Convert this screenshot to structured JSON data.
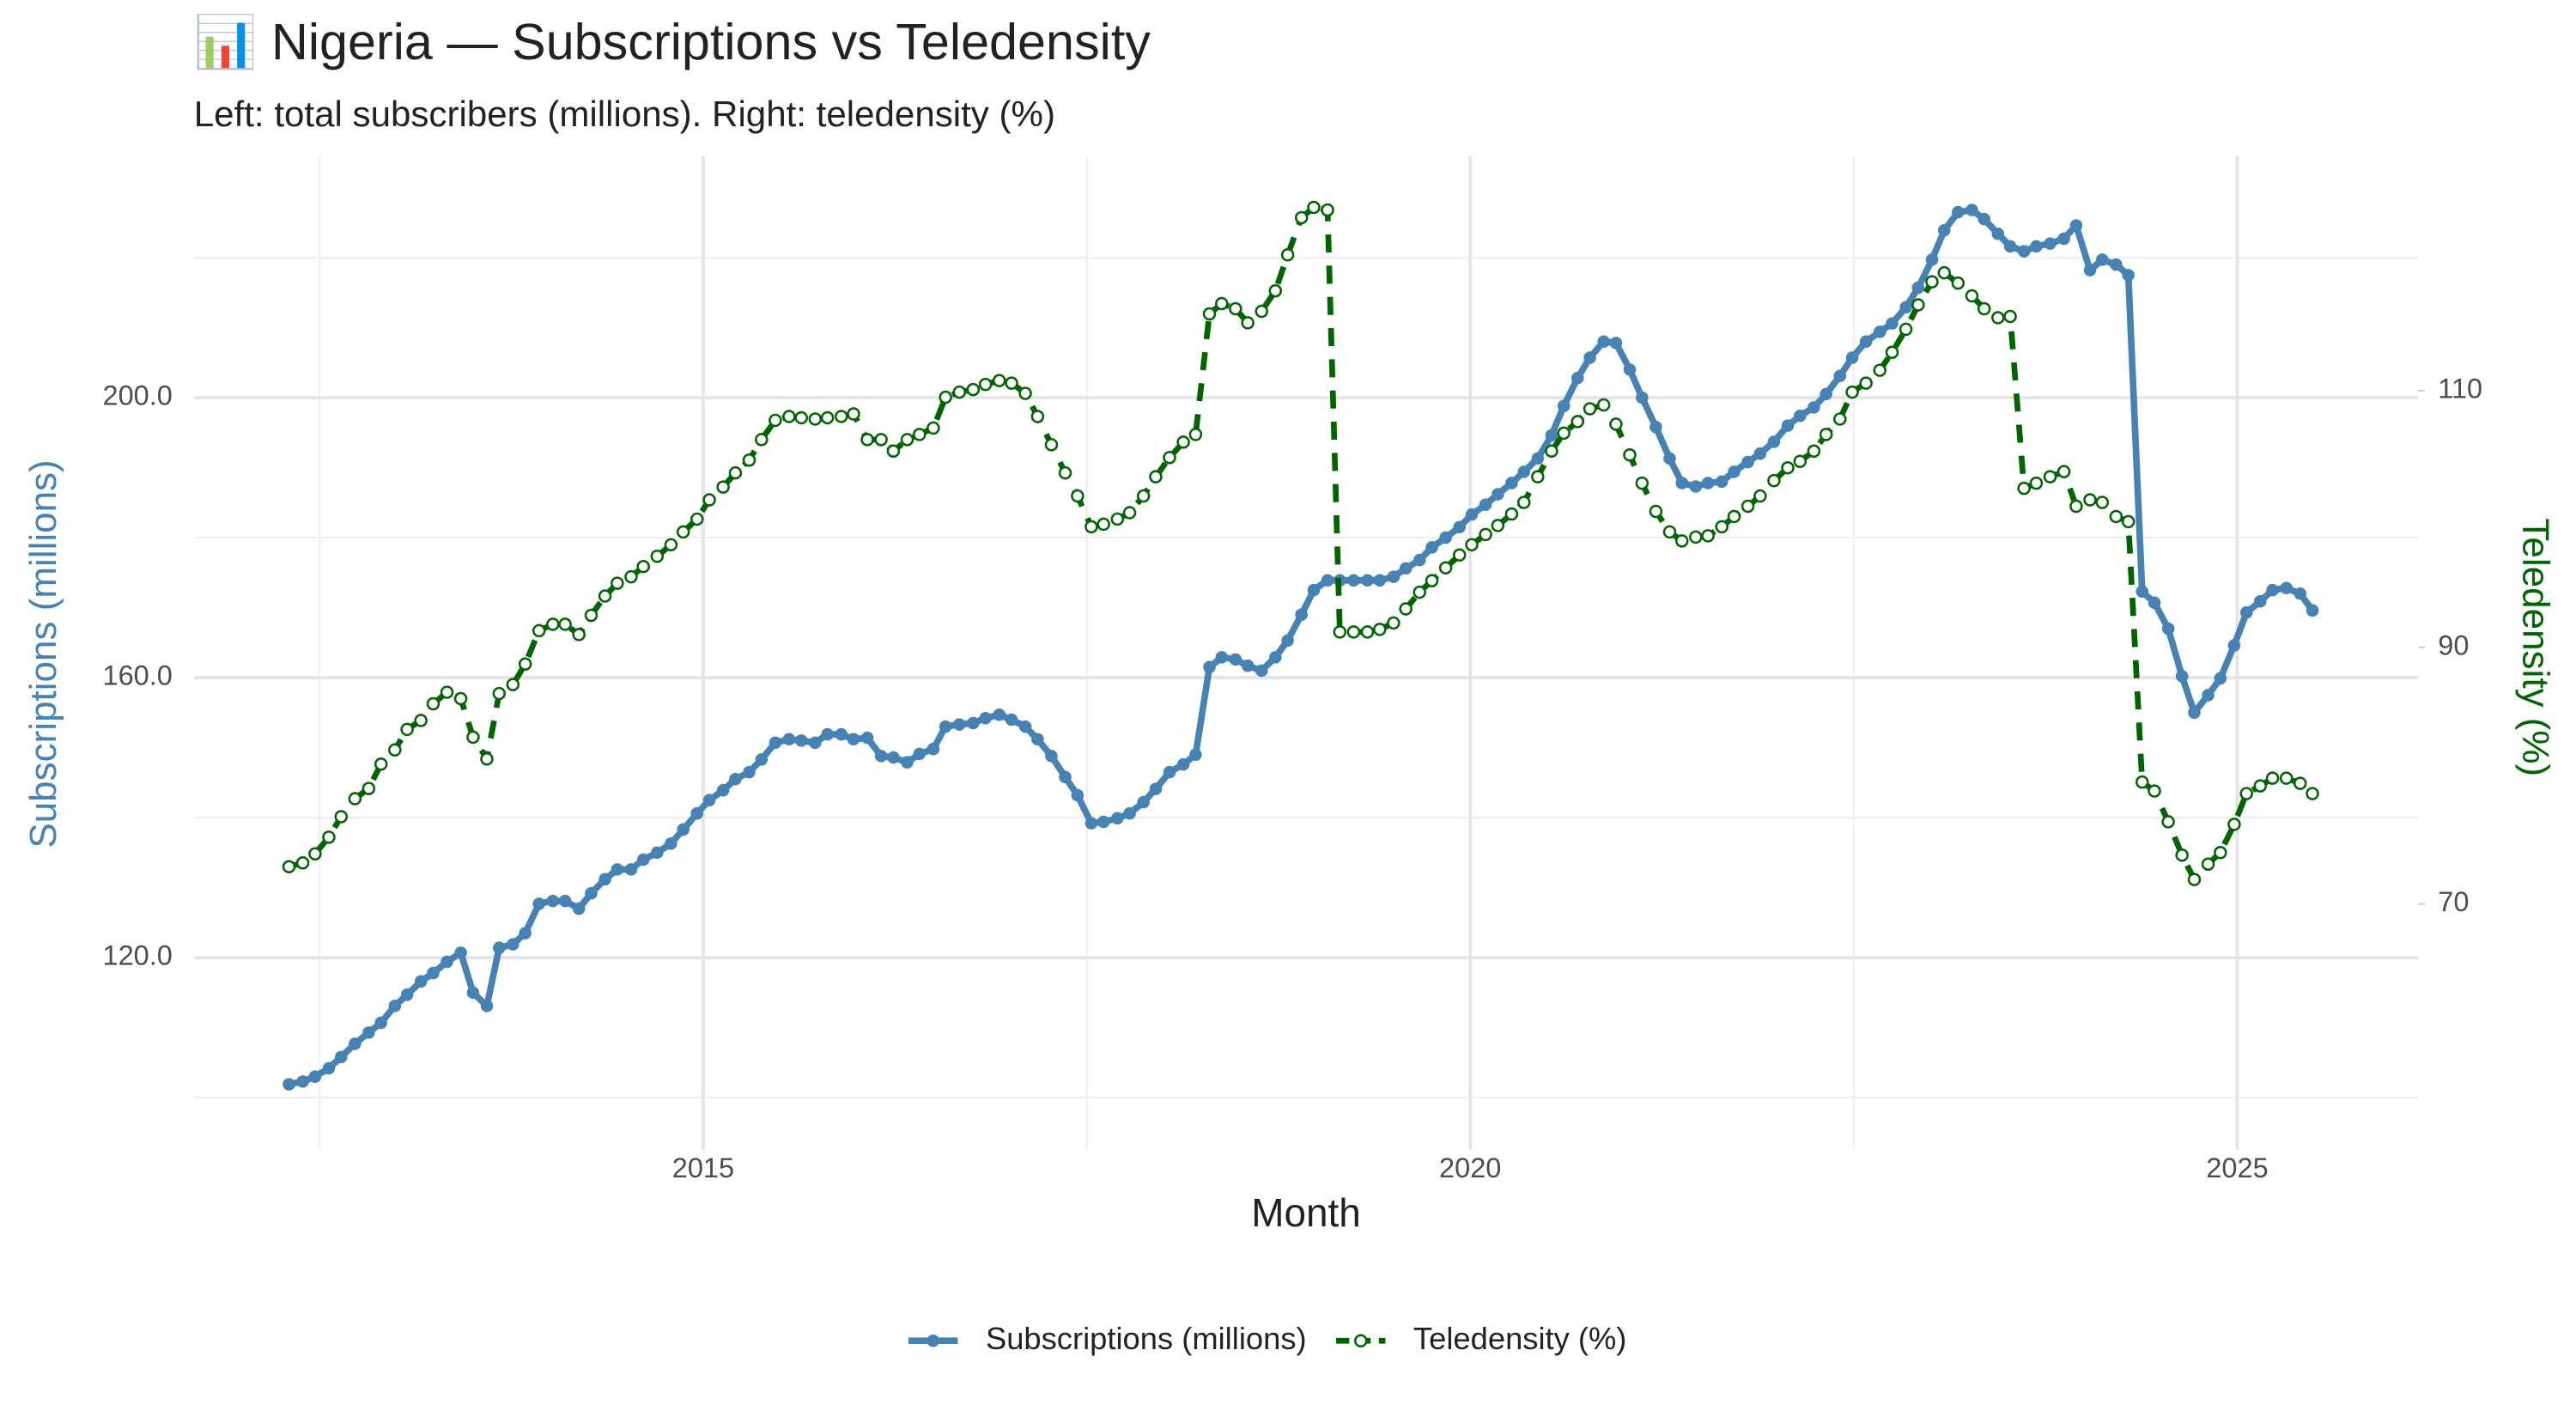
{
  "chart_data": {
    "type": "line",
    "title": "📊 Nigeria — Subscriptions vs Teledensity",
    "subtitle": "Left: total subscribers (millions). Right: teledensity (%)",
    "x_label": "Month",
    "y_label": "Subscriptions (millions)",
    "y2_label": "Teledensity (%)",
    "xlim": [
      2011.68,
      2026.18
    ],
    "xticks": [
      2015,
      2020,
      2025
    ],
    "xminorticks": [
      2012.5,
      2017.5,
      2022.5
    ],
    "ylim": [
      92.5,
      234.5
    ],
    "yticks": [
      {
        "value": 120,
        "label": "120.0"
      },
      {
        "value": 160,
        "label": "160.0"
      },
      {
        "value": 200,
        "label": "200.0"
      }
    ],
    "yminorticks": [
      100,
      140,
      180,
      220
    ],
    "y2lim": [
      50.8,
      128.3
    ],
    "y2ticks": [
      70,
      90,
      110
    ],
    "grid": true,
    "legend": "bottom",
    "x": [
      2012.3,
      2012.39,
      2012.47,
      2012.56,
      2012.64,
      2012.73,
      2012.82,
      2012.9,
      2012.99,
      2013.07,
      2013.16,
      2013.24,
      2013.33,
      2013.42,
      2013.5,
      2013.59,
      2013.67,
      2013.76,
      2013.84,
      2013.93,
      2014.02,
      2014.1,
      2014.19,
      2014.27,
      2014.36,
      2014.44,
      2014.53,
      2014.61,
      2014.7,
      2014.79,
      2014.87,
      2014.96,
      2015.04,
      2015.13,
      2015.21,
      2015.3,
      2015.38,
      2015.47,
      2015.56,
      2015.64,
      2015.73,
      2015.81,
      2015.9,
      2015.98,
      2016.07,
      2016.16,
      2016.24,
      2016.33,
      2016.41,
      2016.5,
      2016.58,
      2016.67,
      2016.76,
      2016.84,
      2016.93,
      2017.01,
      2017.1,
      2017.18,
      2017.27,
      2017.36,
      2017.44,
      2017.53,
      2017.61,
      2017.7,
      2017.78,
      2017.87,
      2017.95,
      2018.04,
      2018.13,
      2018.21,
      2018.3,
      2018.38,
      2018.47,
      2018.55,
      2018.64,
      2018.73,
      2018.81,
      2018.9,
      2018.98,
      2019.07,
      2019.15,
      2019.24,
      2019.33,
      2019.41,
      2019.5,
      2019.58,
      2019.67,
      2019.75,
      2019.84,
      2019.93,
      2020.01,
      2020.1,
      2020.18,
      2020.27,
      2020.35,
      2020.44,
      2020.53,
      2020.61,
      2020.7,
      2020.78,
      2020.87,
      2020.95,
      2021.04,
      2021.12,
      2021.21,
      2021.3,
      2021.38,
      2021.47,
      2021.55,
      2021.64,
      2021.72,
      2021.81,
      2021.89,
      2021.98,
      2022.07,
      2022.15,
      2022.24,
      2022.32,
      2022.41,
      2022.49,
      2022.58,
      2022.67,
      2022.75,
      2022.84,
      2022.92,
      2023.01,
      2023.09,
      2023.18,
      2023.27,
      2023.35,
      2023.44,
      2023.52,
      2023.61,
      2023.69,
      2023.78,
      2023.87,
      2023.95,
      2024.04,
      2024.12,
      2024.21,
      2024.29,
      2024.38,
      2024.46,
      2024.55,
      2024.64,
      2024.72,
      2024.81,
      2024.89,
      2024.98,
      2025.06,
      2025.15,
      2025.23,
      2025.32,
      2025.41,
      2025.49
    ],
    "series": [
      {
        "name": "Subscriptions (millions)",
        "color": "#4682b4",
        "line_style": "solid",
        "marker_fill": "filled",
        "values": [
          101.9,
          102.3,
          103.0,
          104.2,
          105.8,
          107.7,
          109.3,
          110.7,
          113.1,
          114.7,
          116.6,
          117.8,
          119.4,
          120.7,
          115.0,
          113.1,
          121.4,
          121.9,
          123.5,
          127.7,
          128.1,
          128.1,
          127.0,
          129.2,
          131.2,
          132.6,
          132.6,
          134.0,
          135.0,
          136.3,
          138.3,
          140.6,
          142.5,
          143.9,
          145.5,
          146.5,
          148.3,
          150.7,
          151.2,
          151.0,
          150.7,
          151.9,
          151.9,
          151.2,
          151.4,
          148.8,
          148.6,
          147.9,
          149.1,
          149.8,
          153.0,
          153.3,
          153.5,
          154.2,
          154.7,
          154.0,
          153.0,
          151.2,
          148.8,
          145.8,
          143.2,
          139.2,
          139.4,
          139.9,
          140.6,
          142.2,
          144.1,
          146.5,
          147.6,
          149.0,
          161.5,
          162.9,
          162.6,
          161.7,
          161.0,
          162.9,
          165.3,
          169.0,
          172.5,
          173.9,
          173.9,
          173.9,
          173.9,
          173.9,
          174.4,
          175.6,
          176.8,
          178.6,
          180.0,
          181.5,
          183.3,
          184.7,
          186.2,
          187.8,
          189.4,
          191.3,
          194.6,
          198.8,
          202.8,
          205.7,
          208.0,
          207.8,
          204.0,
          200.0,
          195.8,
          191.3,
          187.8,
          187.3,
          187.8,
          188.0,
          189.4,
          190.8,
          192.0,
          193.7,
          196.0,
          197.4,
          198.6,
          200.5,
          203.1,
          205.7,
          208.0,
          209.4,
          210.6,
          212.9,
          215.7,
          219.7,
          223.9,
          226.5,
          226.8,
          225.5,
          223.4,
          221.6,
          220.9,
          221.6,
          222.0,
          222.7,
          224.6,
          218.2,
          219.7,
          219.0,
          217.5,
          172.3,
          170.7,
          167.0,
          160.2,
          155.0,
          157.5,
          159.9,
          164.6,
          169.3,
          170.9,
          172.5,
          172.8,
          172.0,
          169.6
        ]
      },
      {
        "name": "Teledensity (%)",
        "color": "#006400",
        "axis": "y2",
        "line_style": "dashed",
        "marker_fill": "open",
        "values": [
          72.9,
          73.2,
          73.9,
          75.2,
          76.8,
          78.2,
          79.0,
          80.9,
          82.0,
          83.6,
          84.3,
          85.6,
          86.5,
          86.0,
          83.0,
          81.3,
          86.4,
          87.1,
          88.7,
          91.3,
          91.8,
          91.8,
          91.0,
          92.5,
          94.0,
          95.0,
          95.5,
          96.3,
          97.1,
          98.0,
          99.0,
          100.0,
          101.5,
          102.5,
          103.6,
          104.6,
          106.2,
          107.7,
          108.0,
          107.9,
          107.8,
          107.9,
          108.0,
          108.2,
          106.2,
          106.2,
          105.3,
          106.2,
          106.6,
          107.1,
          109.5,
          109.9,
          110.1,
          110.5,
          110.8,
          110.6,
          109.8,
          108.0,
          105.8,
          103.6,
          101.8,
          99.4,
          99.6,
          100.0,
          100.5,
          101.8,
          103.3,
          104.8,
          106.0,
          106.6,
          116.0,
          116.8,
          116.4,
          115.3,
          116.2,
          117.8,
          120.6,
          123.5,
          124.3,
          124.1,
          91.2,
          91.2,
          91.2,
          91.4,
          91.9,
          93.0,
          94.3,
          95.2,
          96.2,
          97.2,
          98.0,
          98.8,
          99.5,
          100.4,
          101.3,
          103.3,
          105.3,
          106.7,
          107.6,
          108.6,
          108.9,
          107.4,
          105.0,
          102.8,
          100.6,
          99.0,
          98.3,
          98.6,
          98.7,
          99.4,
          100.2,
          101.0,
          101.8,
          103.0,
          104.0,
          104.5,
          105.3,
          106.6,
          107.8,
          109.9,
          110.6,
          111.6,
          113.0,
          114.8,
          116.7,
          118.5,
          119.2,
          118.4,
          117.4,
          116.4,
          115.7,
          115.8,
          102.4,
          102.8,
          103.3,
          103.7,
          101.0,
          101.5,
          101.3,
          100.2,
          99.8,
          79.5,
          78.8,
          76.4,
          73.8,
          71.9,
          73.1,
          74.0,
          76.2,
          78.6,
          79.2,
          79.8,
          79.8,
          79.4,
          78.6
        ]
      }
    ]
  }
}
